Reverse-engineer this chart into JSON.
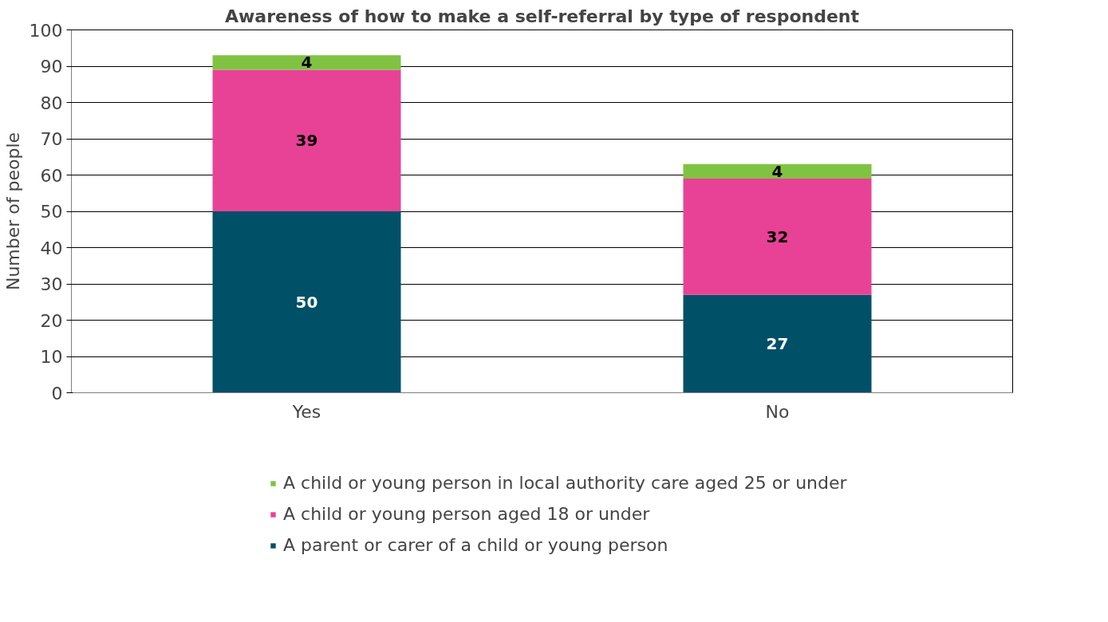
{
  "chart_data": {
    "type": "bar",
    "title": "Awareness of how to make a self-referral by type of respondent",
    "ylabel": "Number of people",
    "categories": [
      "Yes",
      "No"
    ],
    "stacked": true,
    "series": [
      {
        "name": "A parent or carer of a child or young person",
        "color": "#005068",
        "values": [
          50,
          27
        ]
      },
      {
        "name": "A child or young person aged 18 or under",
        "color": "#e84296",
        "values": [
          39,
          32
        ]
      },
      {
        "name": "A child or young person in local authority care aged 25 or under",
        "color": "#80c342",
        "values": [
          4,
          4
        ]
      }
    ],
    "ylim": [
      0,
      100
    ],
    "yticks": [
      0,
      10,
      20,
      30,
      40,
      50,
      60,
      70,
      80,
      90,
      100
    ],
    "grid": "y",
    "legend": "bottom",
    "data_labels": true
  }
}
